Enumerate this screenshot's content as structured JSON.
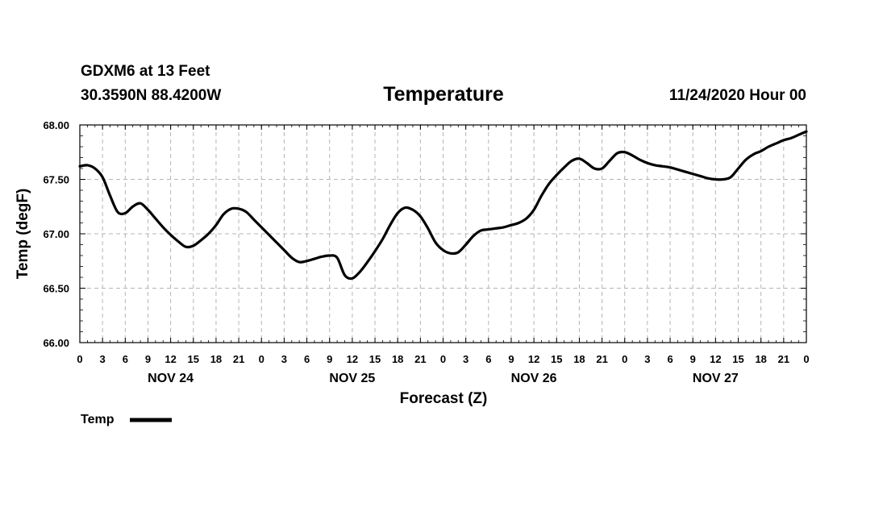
{
  "header": {
    "station": "GDXM6 at 13 Feet",
    "coords": "30.3590N 88.4200W",
    "title": "Temperature",
    "datetime": "11/24/2020 Hour 00"
  },
  "chart_data": {
    "type": "line",
    "title": "Temperature",
    "xlabel": "Forecast (Z)",
    "ylabel": "Temp (degF)",
    "ylim": [
      66.0,
      68.0
    ],
    "yticks": [
      "66.00",
      "66.50",
      "67.00",
      "67.50",
      "68.00"
    ],
    "ytick_values": [
      66.0,
      66.5,
      67.0,
      67.5,
      68.0
    ],
    "xlim_hours": [
      0,
      96
    ],
    "x_tick_labels": [
      "0",
      "3",
      "6",
      "9",
      "12",
      "15",
      "18",
      "21",
      "0",
      "3",
      "6",
      "9",
      "12",
      "15",
      "18",
      "21",
      "0",
      "3",
      "6",
      "9",
      "12",
      "15",
      "18",
      "21",
      "0",
      "3",
      "6",
      "9",
      "12",
      "15",
      "18",
      "21",
      "0"
    ],
    "day_labels": [
      {
        "label": "NOV 24",
        "hour": 12
      },
      {
        "label": "NOV 25",
        "hour": 36
      },
      {
        "label": "NOV 26",
        "hour": 60
      },
      {
        "label": "NOV 27",
        "hour": 84
      }
    ],
    "grid": true,
    "legend": {
      "position": "bottom-left",
      "entries": [
        {
          "name": "Temp",
          "color": "#000000"
        }
      ]
    },
    "series": [
      {
        "name": "Temp",
        "color": "#000000",
        "x_hours": [
          0,
          1,
          2,
          3,
          4,
          5,
          6,
          7,
          8,
          9,
          10,
          11,
          12,
          13,
          14,
          15,
          16,
          17,
          18,
          19,
          20,
          21,
          22,
          23,
          24,
          25,
          26,
          27,
          28,
          29,
          30,
          31,
          32,
          33,
          34,
          35,
          36,
          37,
          38,
          39,
          40,
          41,
          42,
          43,
          44,
          45,
          46,
          47,
          48,
          49,
          50,
          51,
          52,
          53,
          54,
          55,
          56,
          57,
          58,
          59,
          60,
          61,
          62,
          63,
          64,
          65,
          66,
          67,
          68,
          69,
          70,
          71,
          72,
          73,
          74,
          75,
          76,
          77,
          78,
          79,
          80,
          81,
          82,
          83,
          84,
          85,
          86,
          87,
          88,
          89,
          90,
          91,
          92,
          93,
          94,
          95,
          96
        ],
        "values": [
          67.62,
          67.63,
          67.6,
          67.52,
          67.35,
          67.2,
          67.19,
          67.25,
          67.28,
          67.22,
          67.14,
          67.06,
          66.99,
          66.93,
          66.88,
          66.89,
          66.94,
          67.0,
          67.08,
          67.18,
          67.23,
          67.23,
          67.2,
          67.13,
          67.06,
          66.99,
          66.92,
          66.85,
          66.78,
          66.74,
          66.75,
          66.77,
          66.79,
          66.8,
          66.78,
          66.62,
          66.59,
          66.65,
          66.74,
          66.84,
          66.95,
          67.08,
          67.19,
          67.24,
          67.22,
          67.16,
          67.05,
          66.92,
          66.85,
          66.82,
          66.83,
          66.9,
          66.98,
          67.03,
          67.04,
          67.05,
          67.06,
          67.08,
          67.1,
          67.14,
          67.22,
          67.35,
          67.46,
          67.54,
          67.61,
          67.67,
          67.69,
          67.65,
          67.6,
          67.6,
          67.67,
          67.74,
          67.75,
          67.72,
          67.68,
          67.65,
          67.63,
          67.62,
          67.61,
          67.59,
          67.57,
          67.55,
          67.53,
          67.51,
          67.5,
          67.5,
          67.52,
          67.6,
          67.68,
          67.73,
          67.76,
          67.8,
          67.83,
          67.86,
          67.88,
          67.91,
          67.94
        ]
      }
    ]
  }
}
